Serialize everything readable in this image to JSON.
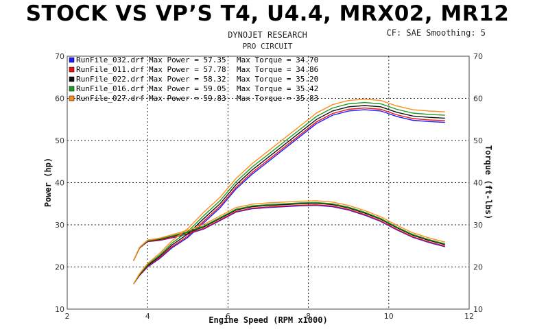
{
  "banner_title": "STOCK VS VP’S T4, U4.4, MRX02, MR12",
  "header": {
    "line1": "DYNOJET RESEARCH",
    "line2": "PRO CIRCUIT",
    "settings": "CF: SAE  Smoothing: 5"
  },
  "chart_data": {
    "type": "line",
    "xlabel": "Engine Speed (RPM x1000)",
    "ylabel_left": "Power (hp)",
    "ylabel_right": "Torque (ft-lbs)",
    "xlim": [
      2,
      12
    ],
    "ylim": [
      10,
      70
    ],
    "x_ticks": [
      "2",
      "4",
      "6",
      "8",
      "10",
      "12"
    ],
    "y_ticks": [
      "10",
      "20",
      "30",
      "40",
      "50",
      "60",
      "70"
    ],
    "grid": "dotted",
    "legend_position": "top-left",
    "legend": [
      {
        "file": "RunFile_032.drf",
        "max_power": "Max Power = 57.35",
        "max_torque": "Max Torque = 34.70",
        "color": "#1a1aff"
      },
      {
        "file": "RunFile_011.drf",
        "max_power": "Max Power = 57.78",
        "max_torque": "Max Torque = 34.86",
        "color": "#ee1111"
      },
      {
        "file": "RunFile_022.drf",
        "max_power": "Max Power = 58.32",
        "max_torque": "Max Torque = 35.20",
        "color": "#111111"
      },
      {
        "file": "RunFile_016.drf",
        "max_power": "Max Power = 59.05",
        "max_torque": "Max Torque = 35.42",
        "color": "#229922"
      },
      {
        "file": "RunFile_027.drf",
        "max_power": "Max Power = 59.83",
        "max_torque": "Max Torque = 35.83",
        "color": "#ff8c1a"
      }
    ],
    "rpm": [
      3.65,
      3.8,
      4.0,
      4.3,
      4.6,
      5.0,
      5.4,
      5.8,
      6.2,
      6.6,
      7.0,
      7.4,
      7.8,
      8.2,
      8.6,
      9.0,
      9.4,
      9.8,
      10.2,
      10.6,
      11.0,
      11.4
    ],
    "power_base": [
      16.0,
      18.0,
      20.0,
      22.0,
      24.5,
      27.0,
      30.5,
      34.0,
      38.5,
      42.0,
      45.0,
      48.0,
      51.0,
      54.0,
      56.0,
      57.0,
      57.3,
      57.0,
      55.7,
      54.8,
      54.5,
      54.3
    ],
    "torque_base": [
      21.5,
      24.5,
      26.0,
      26.3,
      26.9,
      27.8,
      29.0,
      31.0,
      33.0,
      33.8,
      34.1,
      34.3,
      34.5,
      34.6,
      34.3,
      33.5,
      32.3,
      30.8,
      28.8,
      27.0,
      25.8,
      24.8
    ],
    "series": [
      {
        "name": "RunFile_032.drf",
        "color": "#1a1aff",
        "power_offset": 0.0,
        "torque_offset": 0.0
      },
      {
        "name": "RunFile_011.drf",
        "color": "#ee1111",
        "power_offset": 0.4,
        "torque_offset": 0.15
      },
      {
        "name": "RunFile_022.drf",
        "color": "#111111",
        "power_offset": 1.0,
        "torque_offset": 0.5
      },
      {
        "name": "RunFile_016.drf",
        "color": "#229922",
        "power_offset": 1.7,
        "torque_offset": 0.7
      },
      {
        "name": "RunFile_027.drf",
        "color": "#ff8c1a",
        "power_offset": 2.5,
        "torque_offset": 1.1
      }
    ]
  }
}
